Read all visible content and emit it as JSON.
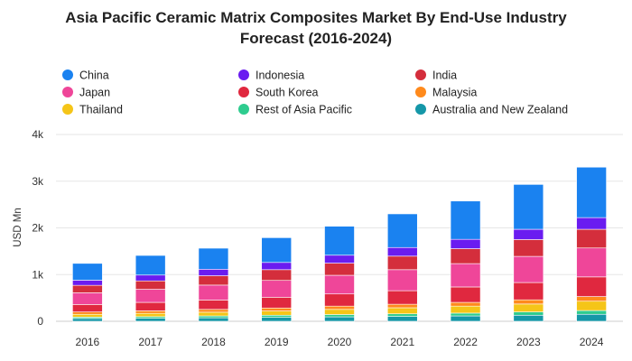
{
  "chart_data": {
    "type": "bar",
    "stacked": true,
    "title_line1": "Asia Pacific Ceramic Matrix Composites Market By End-Use Industry",
    "title_line2": "Forecast (2016-2024)",
    "xlabel": "",
    "ylabel": "USD Mn",
    "ylim": [
      0,
      4000
    ],
    "yticks": [
      0,
      1000,
      2000,
      3000,
      4000
    ],
    "ytick_labels": [
      "0",
      "1k",
      "2k",
      "3k",
      "4k"
    ],
    "grid": true,
    "legend_position": "top",
    "categories": [
      "2016",
      "2017",
      "2018",
      "2019",
      "2020",
      "2021",
      "2022",
      "2023",
      "2024"
    ],
    "series": [
      {
        "name": "Australia and New Zealand",
        "color": "#1597a8",
        "values": [
          60,
          65,
          75,
          85,
          95,
          105,
          115,
          130,
          150
        ]
      },
      {
        "name": "Rest of Asia Pacific",
        "color": "#2ecc8f",
        "values": [
          30,
          35,
          40,
          45,
          50,
          55,
          60,
          70,
          80
        ]
      },
      {
        "name": "Thailand",
        "color": "#f5c518",
        "values": [
          60,
          70,
          80,
          90,
          110,
          130,
          150,
          170,
          200
        ]
      },
      {
        "name": "Malaysia",
        "color": "#ff8a1c",
        "values": [
          50,
          55,
          60,
          65,
          70,
          75,
          80,
          90,
          100
        ]
      },
      {
        "name": "South Korea",
        "color": "#e0283f",
        "values": [
          160,
          180,
          200,
          230,
          260,
          290,
          330,
          370,
          420
        ]
      },
      {
        "name": "Japan",
        "color": "#ef4699",
        "values": [
          250,
          280,
          320,
          360,
          400,
          450,
          500,
          560,
          620
        ]
      },
      {
        "name": "India",
        "color": "#d42e3c",
        "values": [
          160,
          180,
          200,
          230,
          260,
          290,
          320,
          360,
          400
        ]
      },
      {
        "name": "Indonesia",
        "color": "#6a1cf0",
        "values": [
          110,
          125,
          140,
          155,
          170,
          185,
          200,
          220,
          250
        ]
      },
      {
        "name": "China",
        "color": "#1a82f0",
        "values": [
          360,
          420,
          450,
          530,
          620,
          720,
          820,
          960,
          1080
        ]
      }
    ],
    "legend_order": [
      "China",
      "Indonesia",
      "India",
      "Japan",
      "South Korea",
      "Malaysia",
      "Thailand",
      "Rest of Asia Pacific",
      "Australia and New Zealand"
    ]
  }
}
